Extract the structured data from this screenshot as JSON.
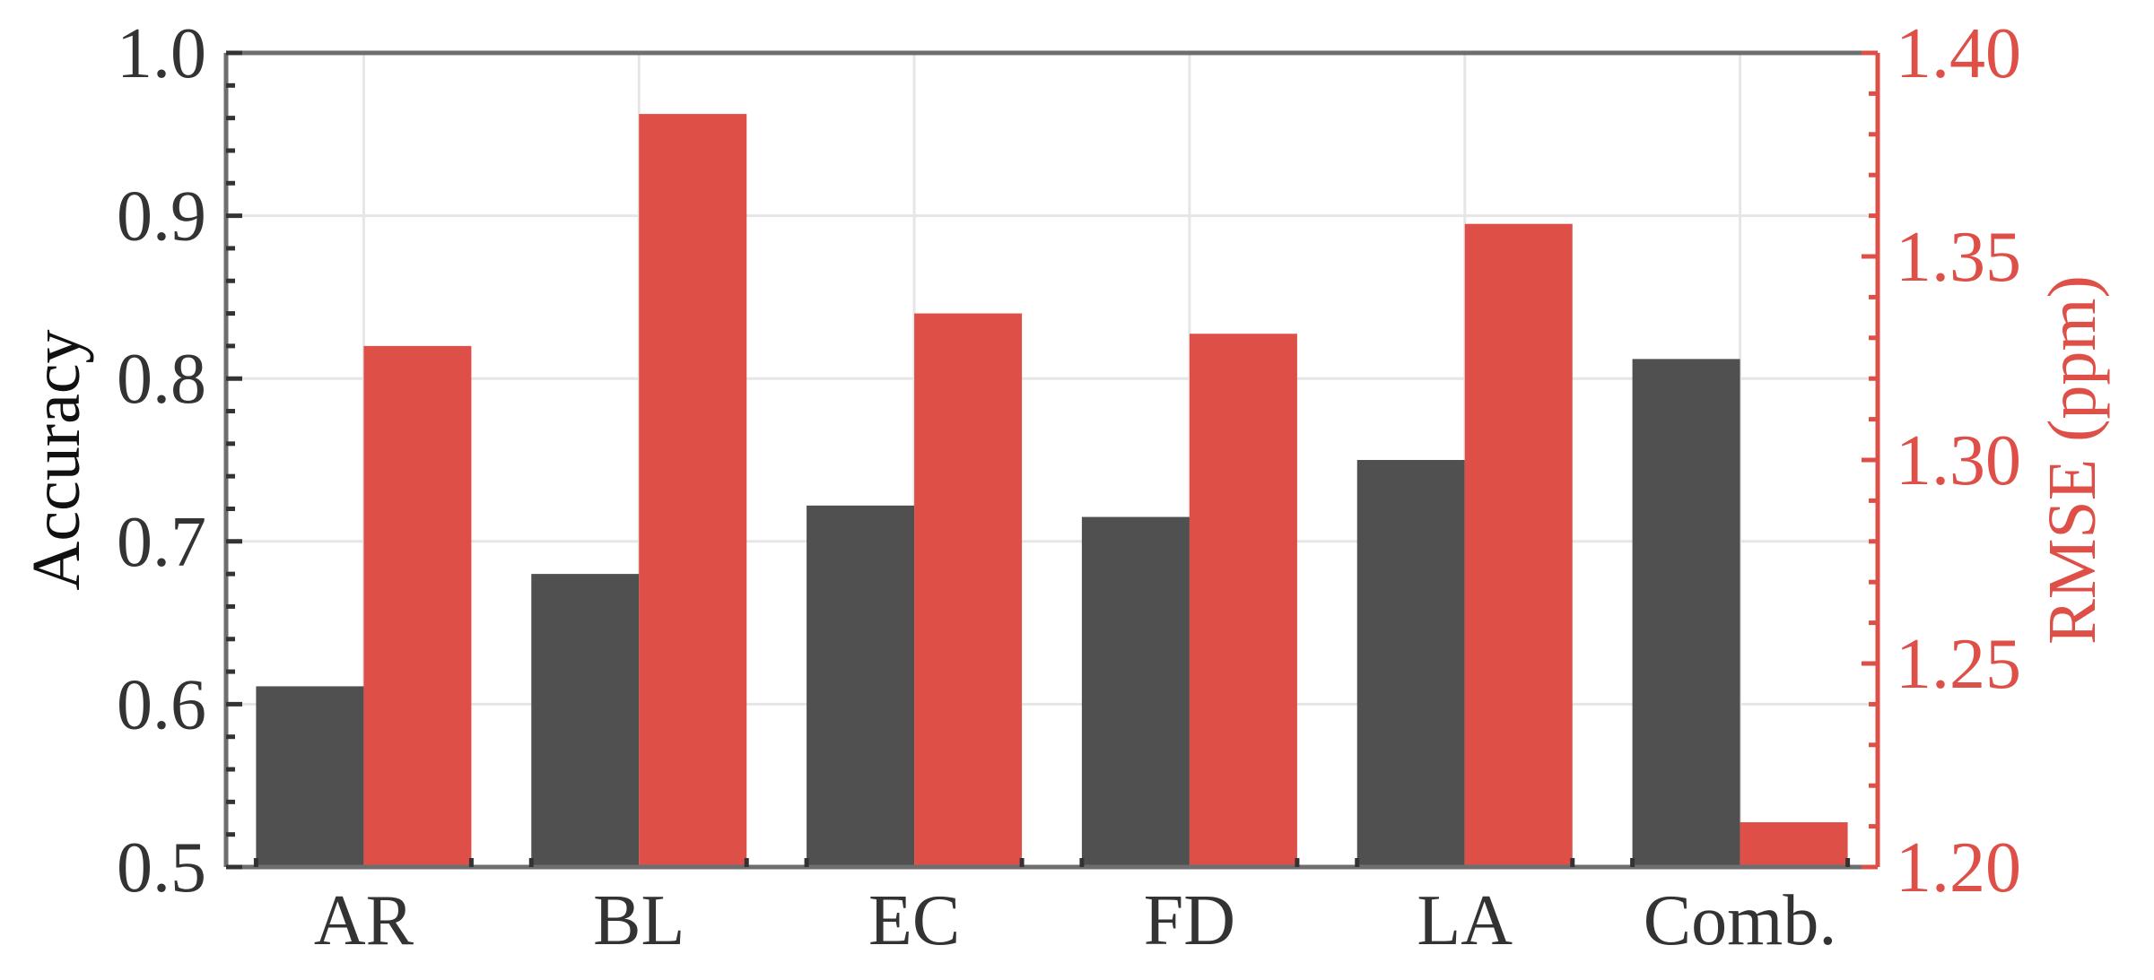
{
  "chart_data": {
    "type": "bar",
    "categories": [
      "AR",
      "BL",
      "EC",
      "FD",
      "LA",
      "Comb."
    ],
    "series": [
      {
        "axis": "left",
        "color": "#505050",
        "values": [
          0.611,
          0.68,
          0.722,
          0.715,
          0.75,
          0.812
        ]
      },
      {
        "axis": "right",
        "color": "#de4f48",
        "values": [
          1.328,
          1.385,
          1.336,
          1.331,
          1.358,
          1.211
        ]
      }
    ],
    "ylabel": "Accuracy",
    "ylabel_right": "RMSE (ppm)",
    "ylim": [
      0.5,
      1.0
    ],
    "ylim_right": [
      1.2,
      1.4
    ],
    "yticks": [
      "0.5",
      "0.6",
      "0.7",
      "0.8",
      "0.9",
      "1.0"
    ],
    "yticks_right": [
      "1.20",
      "1.25",
      "1.30",
      "1.35",
      "1.40"
    ],
    "grid": true,
    "colors": {
      "axis": "#6e6e6e",
      "left_text": "#333333",
      "right_axis": "#de4f48",
      "grid": "#e6e6e6"
    }
  }
}
